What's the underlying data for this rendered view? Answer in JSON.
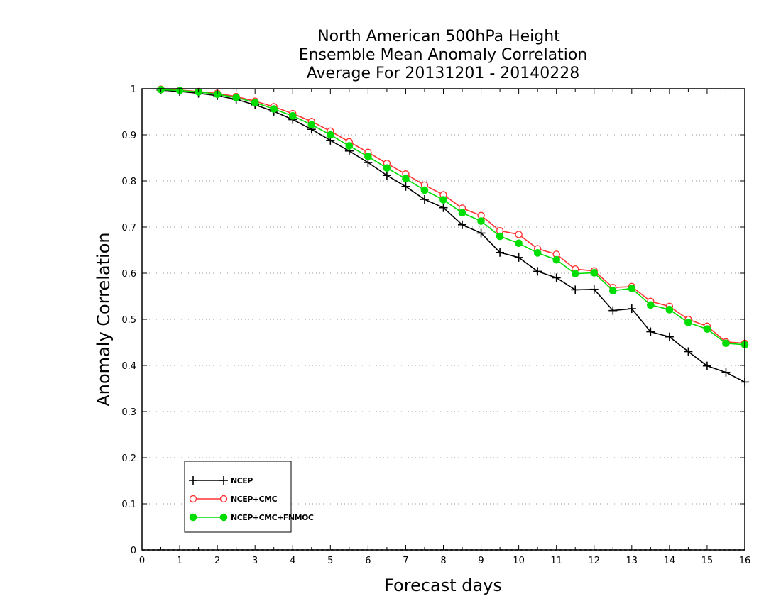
{
  "chart_data": {
    "type": "line",
    "title": [
      "North American 500hPa Height",
      "Ensemble Mean Anomaly Correlation",
      "Average For 20131201 - 20140228"
    ],
    "xlabel": "Forecast days",
    "ylabel": "Anomaly Correlation",
    "xlim": [
      0,
      16
    ],
    "ylim": [
      0,
      1
    ],
    "x_ticks": [
      "0",
      "1",
      "2",
      "3",
      "4",
      "5",
      "6",
      "7",
      "8",
      "9",
      "10",
      "11",
      "12",
      "13",
      "14",
      "15",
      "16"
    ],
    "y_ticks": [
      "0",
      "0.1",
      "0.2",
      "0.3",
      "0.4",
      "0.5",
      "0.6",
      "0.7",
      "0.8",
      "0.9",
      "1"
    ],
    "grid": "horizontal dotted",
    "legend_position": "bottom-left",
    "x": [
      0.5,
      1,
      1.5,
      2,
      2.5,
      3,
      3.5,
      4,
      4.5,
      5,
      5.5,
      6,
      6.5,
      7,
      7.5,
      8,
      8.5,
      9,
      9.5,
      10,
      10.5,
      11,
      11.5,
      12,
      12.5,
      13,
      13.5,
      14,
      14.5,
      15,
      15.5,
      16
    ],
    "series": [
      {
        "name": "NCEP",
        "color": "#000000",
        "marker": "plus",
        "values": [
          0.997,
          0.994,
          0.99,
          0.985,
          0.977,
          0.965,
          0.951,
          0.933,
          0.912,
          0.888,
          0.865,
          0.84,
          0.812,
          0.788,
          0.76,
          0.742,
          0.705,
          0.687,
          0.645,
          0.634,
          0.604,
          0.59,
          0.564,
          0.565,
          0.519,
          0.523,
          0.473,
          0.462,
          0.43,
          0.399,
          0.385,
          0.364
        ]
      },
      {
        "name": "NCEP+CMC",
        "color": "#ff3333",
        "marker": "open-circle",
        "values": [
          0.999,
          0.997,
          0.994,
          0.99,
          0.983,
          0.973,
          0.961,
          0.946,
          0.929,
          0.908,
          0.885,
          0.862,
          0.838,
          0.815,
          0.791,
          0.77,
          0.741,
          0.725,
          0.692,
          0.684,
          0.653,
          0.641,
          0.609,
          0.605,
          0.569,
          0.571,
          0.539,
          0.528,
          0.5,
          0.485,
          0.451,
          0.448
        ]
      },
      {
        "name": "NCEP+CMC+FNMOC",
        "color": "#00dd00",
        "marker": "filled-circle",
        "values": [
          0.998,
          0.996,
          0.993,
          0.988,
          0.981,
          0.97,
          0.956,
          0.941,
          0.922,
          0.9,
          0.876,
          0.853,
          0.828,
          0.805,
          0.78,
          0.759,
          0.731,
          0.713,
          0.68,
          0.665,
          0.644,
          0.629,
          0.599,
          0.601,
          0.562,
          0.567,
          0.531,
          0.521,
          0.493,
          0.479,
          0.448,
          0.445
        ]
      }
    ]
  }
}
